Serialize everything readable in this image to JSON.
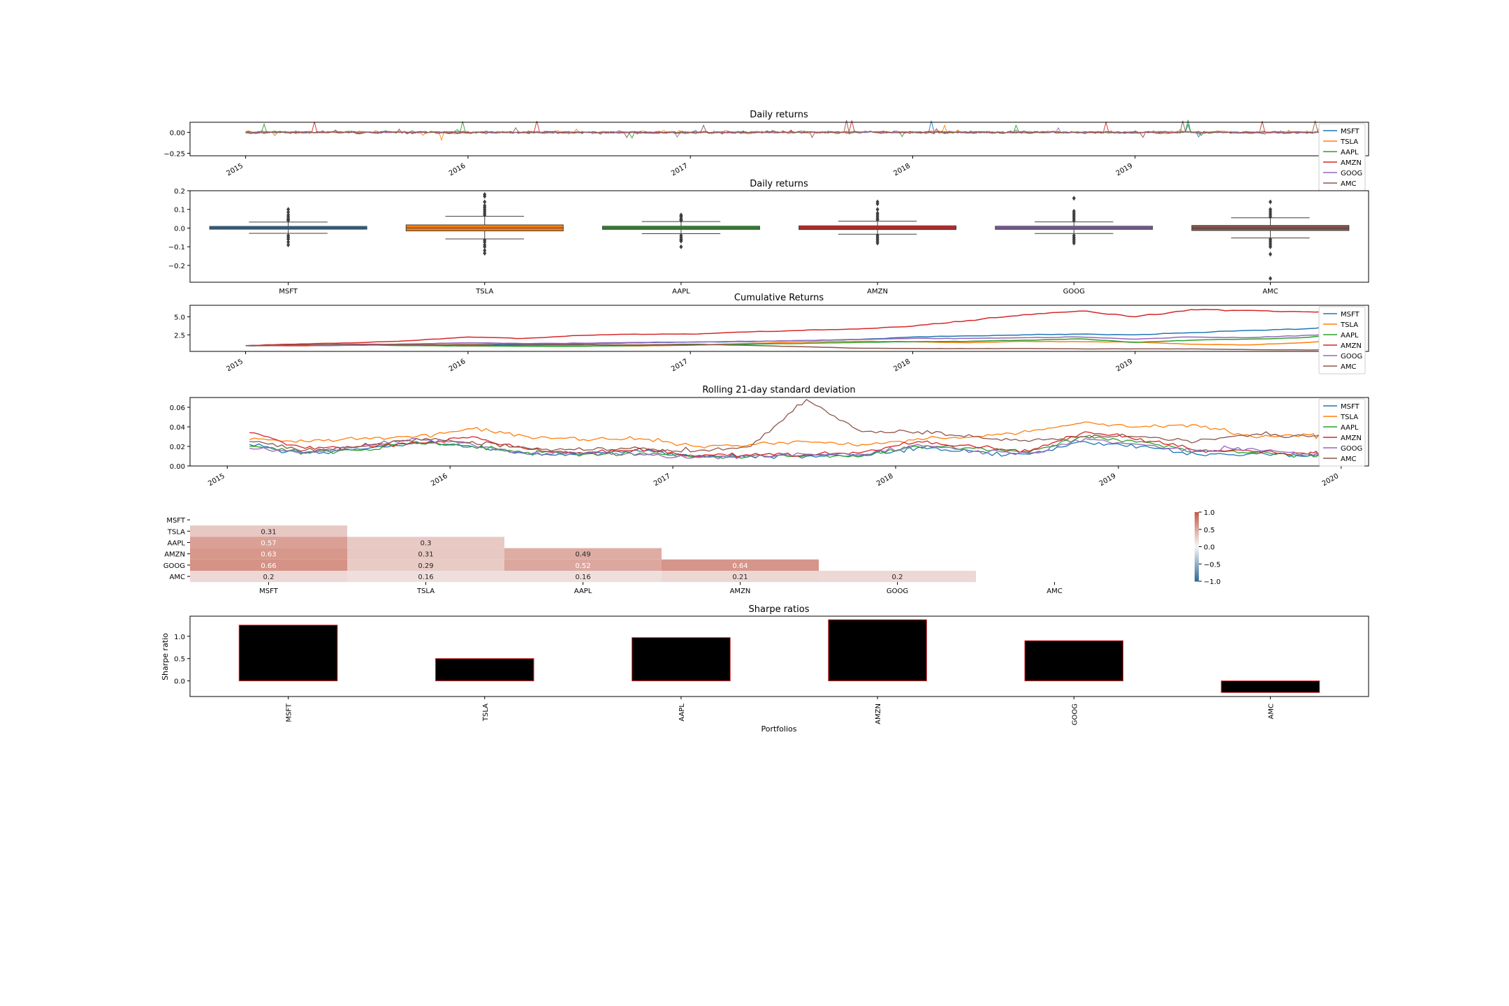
{
  "stocks": [
    "MSFT",
    "TSLA",
    "AAPL",
    "AMZN",
    "GOOG",
    "AMC"
  ],
  "colors": {
    "MSFT": "#1f77b4",
    "TSLA": "#ff7f0e",
    "AAPL": "#2ca02c",
    "AMZN": "#d62728",
    "GOOG": "#9467bd",
    "AMC": "#8c564b",
    "bar_fill": "#000000",
    "bar_edge": "#d62728"
  },
  "chart_data": [
    {
      "id": "daily_returns_line",
      "type": "line",
      "title": "Daily returns",
      "x_range": [
        "2015-01-01",
        "2020-01-01"
      ],
      "x_ticks": [
        "2015",
        "2016",
        "2017",
        "2018",
        "2019",
        "2020"
      ],
      "ylim": [
        -0.28,
        0.12
      ],
      "y_ticks": [
        0.0,
        -0.25
      ],
      "y_tick_labels": [
        "0.00",
        "−0.25"
      ],
      "legend": [
        "MSFT",
        "TSLA",
        "AAPL",
        "AMZN",
        "GOOG",
        "AMC"
      ],
      "legend_position": "right",
      "series_note_values": "approx. daily returns oscillating around 0 (range about -0.25 to 0.17)"
    },
    {
      "id": "daily_returns_box",
      "type": "box",
      "title": "Daily returns",
      "categories": [
        "MSFT",
        "TSLA",
        "AAPL",
        "AMZN",
        "GOOG",
        "AMC"
      ],
      "ylim": [
        -0.29,
        0.2
      ],
      "y_ticks": [
        0.2,
        0.1,
        0.0,
        -0.1,
        -0.2
      ],
      "y_tick_labels": [
        "0.2",
        "0.1",
        "0.0",
        "−0.1",
        "−0.2"
      ],
      "boxes": [
        {
          "name": "MSFT",
          "q1": -0.006,
          "q3": 0.009,
          "median": 0.001,
          "whisker_low": -0.028,
          "whisker_high": 0.032,
          "outliers": [
            0.1,
            0.085,
            0.07,
            0.06,
            0.05,
            0.045,
            0.04,
            -0.04,
            -0.05,
            -0.06,
            -0.075,
            -0.09
          ]
        },
        {
          "name": "TSLA",
          "q1": -0.015,
          "q3": 0.017,
          "median": 0.001,
          "whisker_low": -0.058,
          "whisker_high": 0.063,
          "outliers": [
            0.18,
            0.17,
            0.14,
            0.12,
            0.11,
            0.1,
            0.09,
            0.08,
            0.07,
            -0.065,
            -0.075,
            -0.09,
            -0.1,
            -0.12,
            -0.135
          ]
        },
        {
          "name": "AAPL",
          "q1": -0.007,
          "q3": 0.01,
          "median": 0.001,
          "whisker_low": -0.03,
          "whisker_high": 0.035,
          "outliers": [
            0.07,
            0.065,
            0.06,
            0.05,
            0.045,
            0.04,
            -0.04,
            -0.05,
            -0.06,
            -0.065,
            -0.07,
            -0.1
          ]
        },
        {
          "name": "AMZN",
          "q1": -0.008,
          "q3": 0.012,
          "median": 0.001,
          "whisker_low": -0.033,
          "whisker_high": 0.037,
          "outliers": [
            0.14,
            0.13,
            0.1,
            0.08,
            0.07,
            0.06,
            0.05,
            0.045,
            -0.04,
            -0.05,
            -0.06,
            -0.07,
            -0.08
          ]
        },
        {
          "name": "GOOG",
          "q1": -0.007,
          "q3": 0.01,
          "median": 0.001,
          "whisker_low": -0.029,
          "whisker_high": 0.033,
          "outliers": [
            0.16,
            0.09,
            0.08,
            0.07,
            0.06,
            0.05,
            0.04,
            -0.04,
            -0.05,
            -0.06,
            -0.07,
            -0.08
          ]
        },
        {
          "name": "AMC",
          "q1": -0.013,
          "q3": 0.014,
          "median": 0.0,
          "whisker_low": -0.053,
          "whisker_high": 0.055,
          "outliers": [
            0.14,
            0.1,
            0.09,
            0.08,
            0.07,
            0.06,
            -0.06,
            -0.07,
            -0.08,
            -0.09,
            -0.1,
            -0.14,
            -0.27
          ]
        }
      ]
    },
    {
      "id": "cumulative_returns",
      "type": "line",
      "title": "Cumulative Returns",
      "x_range": [
        "2015-01-01",
        "2020-01-01"
      ],
      "x_ticks": [
        "2015",
        "2016",
        "2017",
        "2018",
        "2019",
        "2020"
      ],
      "ylim": [
        0.2,
        6.6
      ],
      "y_ticks": [
        5.0,
        2.5
      ],
      "y_tick_labels": [
        "5.0",
        "2.5"
      ],
      "legend": [
        "MSFT",
        "TSLA",
        "AAPL",
        "AMZN",
        "GOOG",
        "AMC"
      ],
      "legend_position": "right",
      "x": [
        2015.0,
        2015.25,
        2015.5,
        2015.75,
        2016.0,
        2016.25,
        2016.5,
        2016.75,
        2017.0,
        2017.25,
        2017.5,
        2017.75,
        2018.0,
        2018.25,
        2018.5,
        2018.75,
        2019.0,
        2019.25,
        2019.5,
        2019.75,
        2020.0
      ],
      "series": [
        {
          "name": "MSFT",
          "values": [
            1.0,
            0.98,
            1.05,
            1.12,
            1.2,
            1.2,
            1.28,
            1.38,
            1.5,
            1.55,
            1.7,
            1.85,
            2.2,
            2.35,
            2.5,
            2.6,
            2.5,
            2.8,
            3.1,
            3.3,
            3.9
          ]
        },
        {
          "name": "TSLA",
          "values": [
            1.0,
            0.95,
            1.2,
            1.15,
            1.1,
            1.05,
            1.0,
            0.95,
            1.05,
            1.3,
            1.5,
            1.6,
            1.55,
            1.4,
            1.6,
            1.55,
            1.5,
            1.2,
            1.1,
            1.4,
            1.95
          ]
        },
        {
          "name": "AAPL",
          "values": [
            1.0,
            1.05,
            1.1,
            1.0,
            0.95,
            0.92,
            0.9,
            1.0,
            1.08,
            1.2,
            1.3,
            1.45,
            1.55,
            1.6,
            1.75,
            1.95,
            1.45,
            1.75,
            1.9,
            2.1,
            2.65
          ]
        },
        {
          "name": "AMZN",
          "values": [
            1.0,
            1.25,
            1.4,
            1.7,
            2.2,
            2.0,
            2.4,
            2.6,
            2.6,
            2.9,
            3.1,
            3.3,
            3.7,
            4.5,
            5.3,
            5.8,
            5.0,
            6.0,
            5.9,
            5.7,
            5.9
          ]
        },
        {
          "name": "GOOG",
          "values": [
            1.0,
            1.0,
            1.05,
            1.25,
            1.4,
            1.3,
            1.35,
            1.45,
            1.5,
            1.6,
            1.7,
            1.85,
            2.0,
            2.0,
            2.1,
            2.2,
            1.9,
            2.2,
            2.1,
            2.4,
            2.7
          ]
        },
        {
          "name": "AMC",
          "values": [
            1.0,
            1.1,
            1.2,
            1.15,
            1.0,
            1.1,
            1.15,
            1.1,
            1.2,
            1.05,
            0.85,
            0.65,
            0.6,
            0.58,
            0.6,
            0.55,
            0.55,
            0.55,
            0.45,
            0.4,
            0.42
          ]
        }
      ]
    },
    {
      "id": "rolling_std",
      "type": "line",
      "title": "Rolling 21-day standard deviation",
      "x_range": [
        "2014-11-01",
        "2020-02-15"
      ],
      "x_ticks": [
        "2015",
        "2016",
        "2017",
        "2018",
        "2019",
        "2020"
      ],
      "ylim": [
        0.0,
        0.07
      ],
      "y_ticks": [
        0.0,
        0.02,
        0.04,
        0.06
      ],
      "y_tick_labels": [
        "0.00",
        "0.02",
        "0.04",
        "0.06"
      ],
      "legend": [
        "MSFT",
        "TSLA",
        "AAPL",
        "AMZN",
        "GOOG",
        "AMC"
      ],
      "legend_position": "right",
      "x": [
        2015.1,
        2015.35,
        2015.6,
        2015.85,
        2016.1,
        2016.35,
        2016.6,
        2016.85,
        2017.1,
        2017.35,
        2017.6,
        2017.85,
        2018.1,
        2018.35,
        2018.6,
        2018.85,
        2019.1,
        2019.35,
        2019.6,
        2019.85,
        2020.0
      ],
      "series": [
        {
          "name": "MSFT",
          "values": [
            0.022,
            0.013,
            0.017,
            0.024,
            0.02,
            0.012,
            0.012,
            0.015,
            0.01,
            0.01,
            0.01,
            0.011,
            0.019,
            0.015,
            0.012,
            0.025,
            0.02,
            0.012,
            0.013,
            0.01,
            0.012
          ]
        },
        {
          "name": "TSLA",
          "values": [
            0.027,
            0.025,
            0.028,
            0.03,
            0.038,
            0.03,
            0.027,
            0.028,
            0.02,
            0.022,
            0.025,
            0.022,
            0.028,
            0.03,
            0.035,
            0.045,
            0.04,
            0.042,
            0.03,
            0.032,
            0.03
          ]
        },
        {
          "name": "AAPL",
          "values": [
            0.02,
            0.014,
            0.016,
            0.025,
            0.02,
            0.014,
            0.012,
            0.013,
            0.009,
            0.01,
            0.011,
            0.01,
            0.02,
            0.018,
            0.014,
            0.03,
            0.025,
            0.015,
            0.014,
            0.01,
            0.012
          ]
        },
        {
          "name": "AMZN",
          "values": [
            0.034,
            0.018,
            0.02,
            0.023,
            0.03,
            0.017,
            0.013,
            0.018,
            0.01,
            0.011,
            0.012,
            0.014,
            0.025,
            0.02,
            0.015,
            0.035,
            0.028,
            0.016,
            0.015,
            0.012,
            0.015
          ]
        },
        {
          "name": "GOOG",
          "values": [
            0.018,
            0.014,
            0.02,
            0.028,
            0.022,
            0.012,
            0.013,
            0.012,
            0.009,
            0.01,
            0.012,
            0.012,
            0.022,
            0.015,
            0.013,
            0.028,
            0.022,
            0.016,
            0.018,
            0.012,
            0.012
          ]
        },
        {
          "name": "AMC",
          "values": [
            0.025,
            0.016,
            0.02,
            0.028,
            0.025,
            0.018,
            0.016,
            0.018,
            0.015,
            0.02,
            0.068,
            0.035,
            0.035,
            0.03,
            0.025,
            0.03,
            0.03,
            0.025,
            0.032,
            0.03,
            0.032
          ]
        }
      ]
    },
    {
      "id": "correlation_heatmap",
      "type": "heatmap",
      "rows": [
        "MSFT",
        "TSLA",
        "AAPL",
        "AMZN",
        "GOOG",
        "AMC"
      ],
      "cols": [
        "MSFT",
        "TSLA",
        "AAPL",
        "AMZN",
        "GOOG",
        "AMC"
      ],
      "lower_triangle": [
        [],
        [
          0.31
        ],
        [
          0.57,
          0.3
        ],
        [
          0.63,
          0.31,
          0.49
        ],
        [
          0.66,
          0.29,
          0.52,
          0.64
        ],
        [
          0.2,
          0.16,
          0.16,
          0.21,
          0.2
        ]
      ],
      "colorbar_range": [
        -1.0,
        1.0
      ],
      "colorbar_ticks": [
        "1.0",
        "0.5",
        "0.0",
        "−0.5",
        "−1.0"
      ]
    },
    {
      "id": "sharpe_ratios",
      "type": "bar",
      "title": "Sharpe ratios",
      "categories": [
        "MSFT",
        "TSLA",
        "AAPL",
        "AMZN",
        "GOOG",
        "AMC"
      ],
      "values": [
        1.25,
        0.5,
        0.97,
        1.37,
        0.9,
        -0.26
      ],
      "xlabel": "Portfolios",
      "ylabel": "Sharpe ratio",
      "ylim": [
        -0.35,
        1.45
      ],
      "y_ticks": [
        1.0,
        0.5,
        0.0
      ],
      "y_tick_labels": [
        "1.0",
        "0.5",
        "0.0"
      ]
    }
  ]
}
